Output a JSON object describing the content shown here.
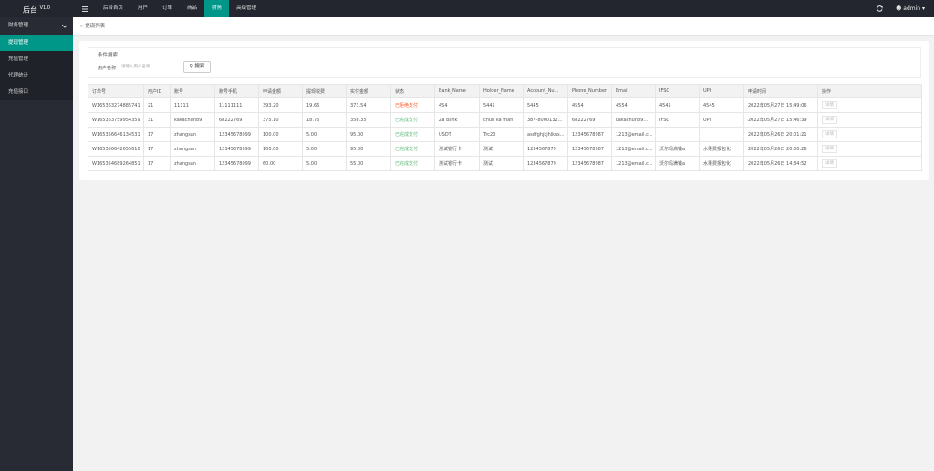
{
  "header": {
    "logo": "后台",
    "version": "V1.0",
    "nav": [
      "后台首页",
      "用户",
      "订单",
      "商品",
      "财务",
      "高级管理"
    ],
    "active_nav": 4,
    "user": "admin"
  },
  "sidebar": {
    "group": "财务管理",
    "items": [
      "提现管理",
      "充值管理",
      "代理统计",
      "充值接口"
    ],
    "active_item": 0
  },
  "breadcrumb": "提现列表",
  "search": {
    "legend": "条件搜索",
    "label": "用户名称",
    "placeholder": "请输入用户名称",
    "button": "搜索"
  },
  "table": {
    "columns": [
      "订单号",
      "用户ID",
      "账号",
      "账号手机",
      "申请金额",
      "提现税费",
      "实付金额",
      "状态",
      "Bank_Name",
      "Holder_Name",
      "Account_Nu...",
      "Phone_Number",
      "Email",
      "IFSC",
      "UPI",
      "申请时间",
      "操作"
    ],
    "rows": [
      [
        "W165363274885741",
        "21",
        "11111",
        "11111111",
        "393.20",
        "19.66",
        "373.54",
        "已拒绝支付",
        "454",
        "5445",
        "5445",
        "4554",
        "4554",
        "4545",
        "4545",
        "2022年05月27日 15:49:06",
        "详情"
      ],
      [
        "W165363759954359",
        "31",
        "kakachun89",
        "68222769",
        "375.10",
        "18.76",
        "356.35",
        "已完成支付",
        "Za bank",
        "chun ka man",
        "387-8000132...",
        "68222769",
        "kakachun89...",
        "IFSC",
        "UPI",
        "2022年05月27日 15:46:39",
        "详情"
      ],
      [
        "W165356646134531",
        "17",
        "zhangsan",
        "12345678099",
        "100.00",
        "5.00",
        "95.00",
        "已完成支付",
        "USDT",
        "Trc20",
        "asdfghjkjhlkas...",
        "12345678987",
        "1213@email.c...",
        "",
        "",
        "2022年05月26日 20:01:21",
        "详情"
      ],
      [
        "W165356642655610",
        "17",
        "zhangsan",
        "12345678099",
        "100.00",
        "5.00",
        "95.00",
        "已完成支付",
        "测试银行卡",
        "测试",
        "1234567879",
        "12345678987",
        "1213@email.c...",
        "沃尔玛满钱a",
        "水果费报包化",
        "2022年05月26日 20:00:26",
        "详情"
      ],
      [
        "W165354689264851",
        "17",
        "zhangsan",
        "12345678099",
        "60.00",
        "5.00",
        "55.00",
        "已完成支付",
        "测试银行卡",
        "测试",
        "1234567879",
        "12345678987",
        "1213@email.c...",
        "沃尔玛满钱a",
        "水果费报包化",
        "2022年05月26日 14:34:52",
        "详情"
      ]
    ],
    "status_colors": [
      "#ff5722",
      "#5fb878",
      "#5fb878",
      "#5fb878",
      "#5fb878"
    ]
  }
}
